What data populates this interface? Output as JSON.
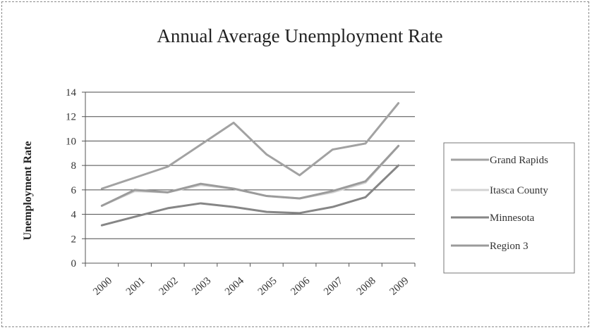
{
  "chart_data": {
    "type": "line",
    "title": "Annual Average Unemployment Rate",
    "xlabel": "",
    "ylabel": "Unemployment Rate",
    "categories": [
      "2000",
      "2001",
      "2002",
      "2003",
      "2004",
      "2005",
      "2006",
      "2007",
      "2008",
      "2009"
    ],
    "ylim": [
      0,
      14
    ],
    "yticks": [
      0,
      2,
      4,
      6,
      8,
      10,
      12,
      14
    ],
    "grid": true,
    "legend_position": "right",
    "series": [
      {
        "name": "Grand Rapids",
        "values": [
          6.1,
          7.0,
          7.9,
          9.7,
          11.5,
          8.9,
          7.2,
          9.3,
          9.8,
          13.1
        ],
        "color": "#a2a2a2"
      },
      {
        "name": "Itasca County",
        "values": [
          4.7,
          5.9,
          5.8,
          6.4,
          6.1,
          5.5,
          5.3,
          5.8,
          6.6,
          9.6
        ],
        "color": "#d3d3d3"
      },
      {
        "name": "Minnesota",
        "values": [
          3.1,
          3.8,
          4.5,
          4.9,
          4.6,
          4.2,
          4.1,
          4.6,
          5.4,
          8.0
        ],
        "color": "#868686"
      },
      {
        "name": "Region 3",
        "values": [
          4.7,
          6.0,
          5.8,
          6.5,
          6.1,
          5.5,
          5.3,
          5.9,
          6.7,
          9.6
        ],
        "color": "#9b9b9b"
      }
    ]
  }
}
